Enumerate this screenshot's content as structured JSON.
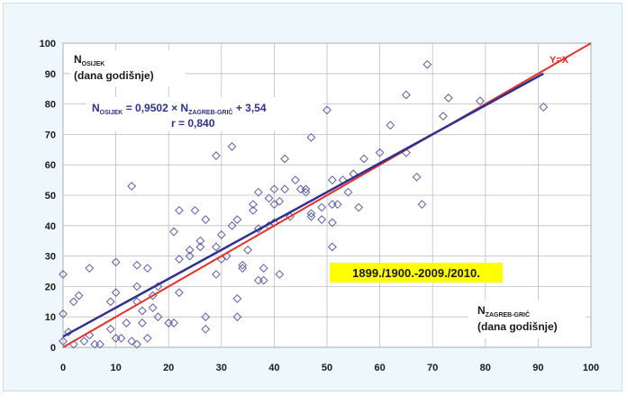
{
  "chart_data": {
    "type": "scatter",
    "xlim": [
      0,
      100
    ],
    "ylim": [
      0,
      100
    ],
    "x_ticks": [
      "0",
      "10",
      "20",
      "30",
      "40",
      "50",
      "60",
      "70",
      "80",
      "90",
      "100"
    ],
    "y_ticks": [
      "0",
      "10",
      "20",
      "30",
      "40",
      "50",
      "60",
      "70",
      "80",
      "90",
      "100"
    ],
    "grid": true,
    "ylabel_main": "N",
    "ylabel_sub": "OSIJEK",
    "ylabel_unit": "(dana godišnje)",
    "xlabel_main": "N",
    "xlabel_sub": "ZAGREB-GRIČ",
    "xlabel_unit": "(dana godišnje)",
    "equation": {
      "prefix": "N",
      "sub1": "OSIJEK",
      "mid": " = 0,9502 × N",
      "sub2": "ZAGREB-GRIČ",
      "suffix": " + 3,54",
      "r": "r = 0,840"
    },
    "period_label": "1899./1900.-2009./2010.",
    "identity_label": "Y=X",
    "regression": {
      "slope": 0.9502,
      "intercept": 3.54,
      "color": "#2e3192"
    },
    "identity_color": "#e8302a",
    "marker_color": "#5b5ea8",
    "highlight_color": "#ffff00",
    "points": [
      [
        0,
        24
      ],
      [
        0,
        11
      ],
      [
        0,
        2
      ],
      [
        1,
        5
      ],
      [
        2,
        15
      ],
      [
        2,
        1
      ],
      [
        3,
        17
      ],
      [
        4,
        2
      ],
      [
        5,
        26
      ],
      [
        5,
        4
      ],
      [
        6,
        1
      ],
      [
        7,
        1
      ],
      [
        9,
        6
      ],
      [
        9,
        15
      ],
      [
        10,
        28
      ],
      [
        10,
        18
      ],
      [
        10,
        3
      ],
      [
        11,
        3
      ],
      [
        12,
        8
      ],
      [
        13,
        53
      ],
      [
        13,
        2
      ],
      [
        14,
        1
      ],
      [
        14,
        27
      ],
      [
        14,
        20
      ],
      [
        14,
        15
      ],
      [
        15,
        8
      ],
      [
        15,
        12
      ],
      [
        16,
        3
      ],
      [
        16,
        26
      ],
      [
        17,
        13
      ],
      [
        17,
        17
      ],
      [
        18,
        10
      ],
      [
        18,
        20
      ],
      [
        20,
        8
      ],
      [
        21,
        38
      ],
      [
        21,
        8
      ],
      [
        22,
        45
      ],
      [
        22,
        18
      ],
      [
        22,
        29
      ],
      [
        24,
        30
      ],
      [
        24,
        32
      ],
      [
        25,
        45
      ],
      [
        26,
        33
      ],
      [
        26,
        35
      ],
      [
        27,
        42
      ],
      [
        27,
        10
      ],
      [
        27,
        6
      ],
      [
        29,
        33
      ],
      [
        29,
        24
      ],
      [
        29,
        63
      ],
      [
        30,
        37
      ],
      [
        30,
        29
      ],
      [
        31,
        30
      ],
      [
        32,
        66
      ],
      [
        32,
        40
      ],
      [
        33,
        16
      ],
      [
        33,
        10
      ],
      [
        33,
        42
      ],
      [
        34,
        26
      ],
      [
        34,
        27
      ],
      [
        35,
        32
      ],
      [
        36,
        45
      ],
      [
        36,
        47
      ],
      [
        37,
        39
      ],
      [
        37,
        51
      ],
      [
        37,
        22
      ],
      [
        38,
        22
      ],
      [
        38,
        26
      ],
      [
        39,
        49
      ],
      [
        39,
        40
      ],
      [
        40,
        41
      ],
      [
        40,
        47
      ],
      [
        40,
        52
      ],
      [
        41,
        48
      ],
      [
        41,
        24
      ],
      [
        42,
        62
      ],
      [
        42,
        52
      ],
      [
        43,
        43
      ],
      [
        44,
        55
      ],
      [
        45,
        52
      ],
      [
        46,
        51
      ],
      [
        46,
        52
      ],
      [
        47,
        69
      ],
      [
        47,
        43
      ],
      [
        47,
        44
      ],
      [
        49,
        42
      ],
      [
        49,
        46
      ],
      [
        50,
        78
      ],
      [
        51,
        47
      ],
      [
        51,
        55
      ],
      [
        51,
        41
      ],
      [
        51,
        33
      ],
      [
        52,
        47
      ],
      [
        53,
        55
      ],
      [
        54,
        51
      ],
      [
        55,
        57
      ],
      [
        56,
        46
      ],
      [
        57,
        62
      ],
      [
        60,
        64
      ],
      [
        62,
        73
      ],
      [
        65,
        83
      ],
      [
        65,
        64
      ],
      [
        67,
        56
      ],
      [
        68,
        47
      ],
      [
        69,
        93
      ],
      [
        72,
        76
      ],
      [
        73,
        82
      ],
      [
        79,
        81
      ],
      [
        91,
        79
      ]
    ]
  }
}
